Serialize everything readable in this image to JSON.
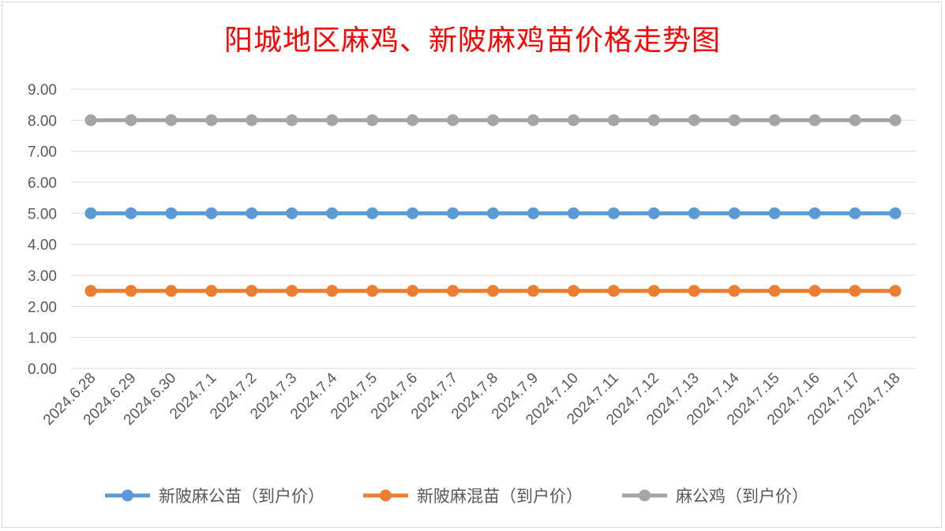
{
  "chart_data": {
    "type": "line",
    "title": "阳城地区麻鸡、新陂麻鸡苗价格走势图",
    "xlabel": "",
    "ylabel": "",
    "ylim": [
      0,
      9
    ],
    "yticks": [
      "0.00",
      "1.00",
      "2.00",
      "3.00",
      "4.00",
      "5.00",
      "6.00",
      "7.00",
      "8.00",
      "9.00"
    ],
    "grid": true,
    "legend_position": "bottom",
    "categories": [
      "2024.6.28",
      "2024.6.29",
      "2024.6.30",
      "2024.7.1",
      "2024.7.2",
      "2024.7.3",
      "2024.7.4",
      "2024.7.5",
      "2024.7.6",
      "2024.7.7",
      "2024.7.8",
      "2024.7.9",
      "2024.7.10",
      "2024.7.11",
      "2024.7.12",
      "2024.7.13",
      "2024.7.14",
      "2024.7.15",
      "2024.7.16",
      "2024.7.17",
      "2024.7.18"
    ],
    "series": [
      {
        "name": "新陂麻公苗（到户价）",
        "color": "#5b9bd5",
        "values": [
          5,
          5,
          5,
          5,
          5,
          5,
          5,
          5,
          5,
          5,
          5,
          5,
          5,
          5,
          5,
          5,
          5,
          5,
          5,
          5,
          5
        ]
      },
      {
        "name": "新陂麻混苗（到户价）",
        "color": "#ed7d31",
        "values": [
          2.5,
          2.5,
          2.5,
          2.5,
          2.5,
          2.5,
          2.5,
          2.5,
          2.5,
          2.5,
          2.5,
          2.5,
          2.5,
          2.5,
          2.5,
          2.5,
          2.5,
          2.5,
          2.5,
          2.5,
          2.5
        ]
      },
      {
        "name": "麻公鸡（到户价）",
        "color": "#a5a5a5",
        "values": [
          8,
          8,
          8,
          8,
          8,
          8,
          8,
          8,
          8,
          8,
          8,
          8,
          8,
          8,
          8,
          8,
          8,
          8,
          8,
          8,
          8
        ]
      }
    ]
  }
}
